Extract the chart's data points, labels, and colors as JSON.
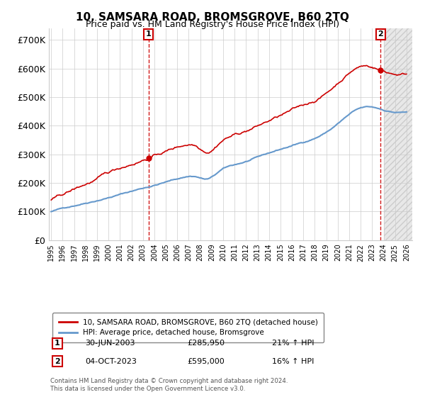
{
  "title": "10, SAMSARA ROAD, BROMSGROVE, B60 2TQ",
  "subtitle": "Price paid vs. HM Land Registry's House Price Index (HPI)",
  "ylabel_ticks": [
    "£0",
    "£100K",
    "£200K",
    "£300K",
    "£400K",
    "£500K",
    "£600K",
    "£700K"
  ],
  "ytick_values": [
    0,
    100000,
    200000,
    300000,
    400000,
    500000,
    600000,
    700000
  ],
  "ylim": [
    0,
    740000
  ],
  "xlim_start": 1994.8,
  "xlim_end": 2026.5,
  "hpi_color": "#6699cc",
  "price_color": "#cc0000",
  "marker1_year": 2003.5,
  "marker1_price": 285950,
  "marker1_date_str": "30-JUN-2003",
  "marker1_pct": "21% ↑ HPI",
  "marker2_year": 2023.75,
  "marker2_price": 595000,
  "marker2_date_str": "04-OCT-2023",
  "marker2_pct": "16% ↑ HPI",
  "legend_line1": "10, SAMSARA ROAD, BROMSGROVE, B60 2TQ (detached house)",
  "legend_line2": "HPI: Average price, detached house, Bromsgrove",
  "footnote1": "Contains HM Land Registry data © Crown copyright and database right 2024.",
  "footnote2": "This data is licensed under the Open Government Licence v3.0.",
  "background_color": "#ffffff",
  "grid_color": "#cccccc"
}
